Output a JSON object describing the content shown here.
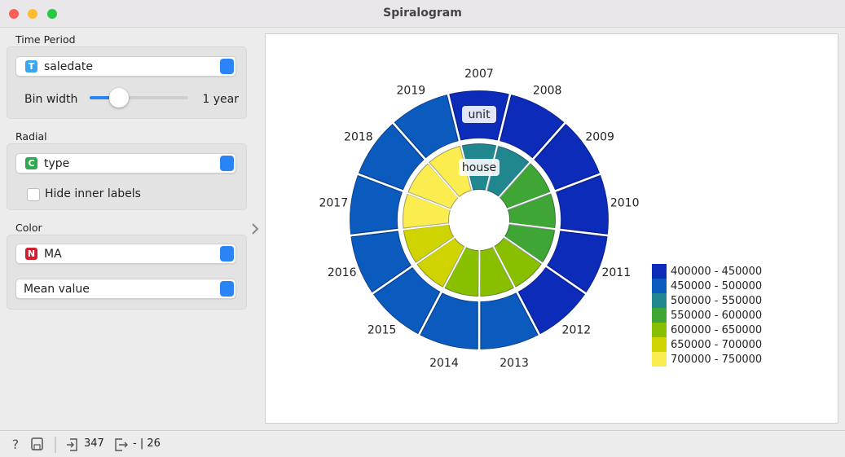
{
  "window": {
    "title": "Spiralogram"
  },
  "controls": {
    "time_period": {
      "title": "Time Period",
      "icon": "T",
      "value": "saledate",
      "bin_width_label": "Bin width",
      "bin_width_value": "1 year"
    },
    "radial": {
      "title": "Radial",
      "icon": "C",
      "value": "type",
      "checkbox": "Hide inner labels"
    },
    "color": {
      "title": "Color",
      "icon": "N",
      "value": "MA",
      "aggregation": "Mean value"
    }
  },
  "spiral": {
    "years": [
      "2007",
      "2008",
      "2009",
      "2010",
      "2011",
      "2012",
      "2013",
      "2014",
      "2015",
      "2016",
      "2017",
      "2018",
      "2019"
    ],
    "rings": [
      {
        "label": "unit",
        "colors": [
          "#0b2bb8",
          "#0b2bb8",
          "#0b2bb8",
          "#0b2bb8",
          "#0b2bb8",
          "#0b2bb8",
          "#0b5bbe",
          "#0b5bbe",
          "#0b5bbe",
          "#0b5bbe",
          "#0b5bbe",
          "#0b5bbe",
          "#0b5bbe"
        ]
      },
      {
        "label": "house",
        "colors": [
          "#21878f",
          "#21878f",
          "#3fa535",
          "#3fa535",
          "#3fa535",
          "#88c000",
          "#88c000",
          "#88c000",
          "#cfd300",
          "#cfd300",
          "#fbec4f",
          "#fbec4f",
          "#fbec4f"
        ]
      }
    ],
    "legend": [
      {
        "range": "400000 - 450000",
        "color": "#0b2bb8"
      },
      {
        "range": "450000 - 500000",
        "color": "#0b5bbe"
      },
      {
        "range": "500000 - 550000",
        "color": "#21878f"
      },
      {
        "range": "550000 - 600000",
        "color": "#3fa535"
      },
      {
        "range": "600000 - 650000",
        "color": "#88c000"
      },
      {
        "range": "650000 - 700000",
        "color": "#cfd300"
      },
      {
        "range": "700000 - 750000",
        "color": "#fbec4f"
      }
    ]
  },
  "status": {
    "input_count": "347",
    "output_count": "- | 26"
  }
}
